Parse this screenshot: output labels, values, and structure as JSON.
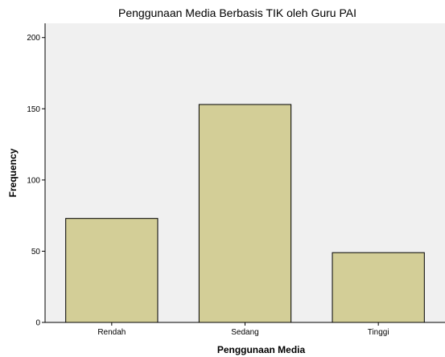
{
  "chart_data": {
    "type": "bar",
    "title": "Penggunaan Media Berbasis TIK oleh Guru PAI",
    "xlabel": "Penggunaan Media",
    "ylabel": "Frequency",
    "categories": [
      "Rendah",
      "Sedang",
      "Tinggi"
    ],
    "values": [
      73,
      153,
      49
    ],
    "ylim": [
      0,
      210
    ],
    "yticks": [
      0,
      50,
      100,
      150,
      200
    ],
    "grid": false,
    "legend": "none",
    "colors": {
      "plot_background": "#f0f0f0",
      "bar_fill": "#d3ce97",
      "bar_stroke": "#000000"
    }
  }
}
